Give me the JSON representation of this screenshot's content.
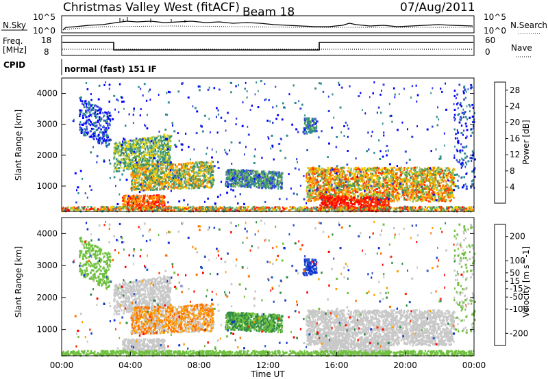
{
  "header": {
    "title": "Christmas Valley West (fitACF)",
    "beam": "Beam 18",
    "date": "07/Aug/2011"
  },
  "panels": {
    "nsky_label": "N.Sky",
    "nsearch_label": "N.Search",
    "freq_label_line1": "Freq.",
    "freq_label_line2": "[MHz]",
    "nave_label": "Nave",
    "cpid_label": "CPID",
    "cpid_value": "normal (fast) 151 IF",
    "nsky_ticks": [
      "10^5",
      "10^0"
    ],
    "nsearch_ticks": [
      "10^5",
      "10^0"
    ],
    "freq_ticks": [
      "18",
      "8"
    ],
    "nave_ticks": [
      "60",
      "0"
    ]
  },
  "colors": {
    "power_scale": [
      "#0000ff",
      "#3344dd",
      "#2e8b8b",
      "#4a9a55",
      "#88c060",
      "#f0d000",
      "#ffaa00",
      "#ff7a00",
      "#ff3300",
      "#ff0000"
    ],
    "velocity_scale": [
      "#1030d0",
      "#2a56c8",
      "#2e8a44",
      "#70c040",
      "#c8c8c8",
      "#c8c8c8",
      "#ffa000",
      "#ff7000",
      "#ff3000",
      "#ff0000"
    ]
  },
  "chart_data": [
    {
      "type": "heatmap",
      "title": "",
      "xlabel": "",
      "ylabel": "Slant Range [km]",
      "xlim": [
        "00:00",
        "00:00"
      ],
      "ylim": [
        180,
        4500
      ],
      "y_ticks": [
        "1000",
        "2000",
        "3000",
        "4000"
      ],
      "colorbar_label": "Power [dB]",
      "colorbar_ticks": [
        "4",
        "8",
        "12",
        "16",
        "20",
        "24",
        "28"
      ],
      "colorbar_range": [
        0,
        30
      ]
    },
    {
      "type": "heatmap",
      "title": "",
      "xlabel": "Time UT",
      "ylabel": "Slant Range [km]",
      "x_ticks": [
        "00:00",
        "04:00",
        "08:00",
        "12:00",
        "16:00",
        "20:00",
        "00:00"
      ],
      "xlim": [
        "00:00",
        "00:00"
      ],
      "ylim": [
        180,
        4500
      ],
      "y_ticks": [
        "1000",
        "2000",
        "3000",
        "4000"
      ],
      "colorbar_label": "Velocity [m s^-1]",
      "colorbar_ticks": [
        "200",
        "100",
        "50",
        "15",
        "-15",
        "-50",
        "-100",
        "-200"
      ],
      "colorbar_range": [
        -250,
        250
      ]
    }
  ]
}
